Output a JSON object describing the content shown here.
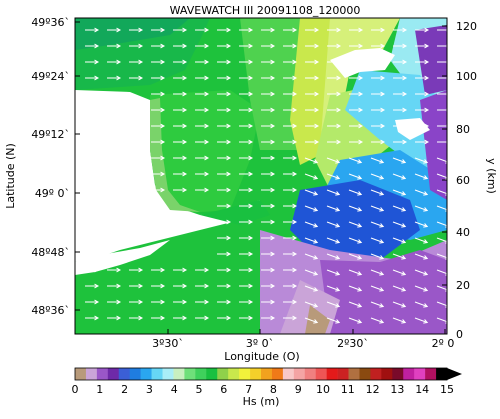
{
  "title": "WAVEWATCH III 20091108_120000",
  "axes": {
    "left_label": "Latitude (N)",
    "right_label": "y (km)",
    "bottom_label": "Longitude (O)",
    "lat_ticks": [
      "49º36`",
      "49º24`",
      "49º12`",
      "49º 0`",
      "48º48`",
      "48º36`"
    ],
    "lon_ticks": [
      "3º30`",
      "3º 0`",
      "2º30`",
      "2º 0"
    ],
    "y_ticks": [
      "0",
      "20",
      "40",
      "60",
      "80",
      "100",
      "120"
    ]
  },
  "colorbar": {
    "label": "Hs (m)",
    "tick_labels": [
      "0",
      "1",
      "2",
      "3",
      "4",
      "5",
      "6",
      "7",
      "8",
      "9",
      "10",
      "11",
      "12",
      "13",
      "14",
      "15"
    ],
    "colors": [
      "#b89a7a",
      "#caa4d8",
      "#9a57c8",
      "#6e2aa8",
      "#3b5fd6",
      "#1f7de0",
      "#2aa6f0",
      "#66d6f5",
      "#a9eef7",
      "#c8f0c0",
      "#6fe07a",
      "#3fd15c",
      "#19c040",
      "#8fd14a",
      "#c9e84c",
      "#f2f23b",
      "#f5d02a",
      "#f2a21e",
      "#ef7a18",
      "#f8c8c8",
      "#f4a4a4",
      "#f08080",
      "#ee5555",
      "#e41a1a",
      "#cc2222",
      "#b07040",
      "#8a4a10",
      "#c02020",
      "#a01010",
      "#7a0a2a",
      "#c020a0",
      "#e040c0",
      "#b01060",
      "#000000"
    ]
  },
  "map_colors": {
    "land": "#ffffff",
    "arrow": "#ffffff"
  }
}
